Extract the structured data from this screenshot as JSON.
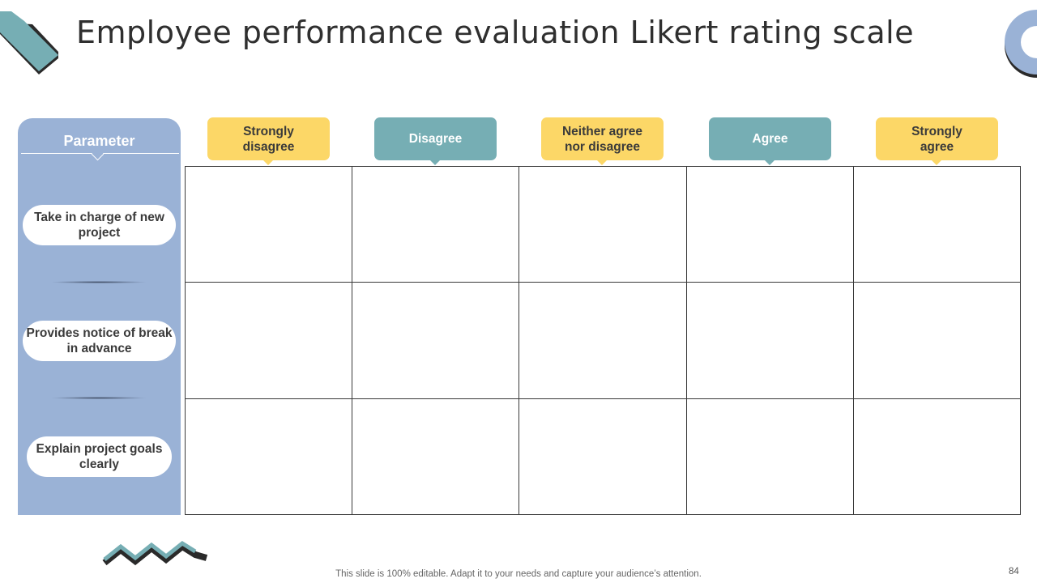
{
  "title": "Employee performance evaluation Likert rating scale",
  "parameter_header": "Parameter",
  "parameters": [
    {
      "label": "Take in charge of new project"
    },
    {
      "label": "Provides notice of break in advance"
    },
    {
      "label": "Explain project goals clearly"
    }
  ],
  "scale": [
    {
      "label": "Strongly disagree",
      "color": "#fcd767"
    },
    {
      "label": "Disagree",
      "color": "#76aeb4"
    },
    {
      "label": "Neither agree nor disagree",
      "color": "#fcd767"
    },
    {
      "label": "Agree",
      "color": "#76aeb4"
    },
    {
      "label": "Strongly agree",
      "color": "#fcd767"
    }
  ],
  "footer": "This slide is 100% editable. Adapt it to your needs and capture your audience’s attention.",
  "page_number": "84",
  "colors": {
    "panel": "#9ab2d6",
    "yellow": "#fcd767",
    "teal": "#76aeb4"
  }
}
